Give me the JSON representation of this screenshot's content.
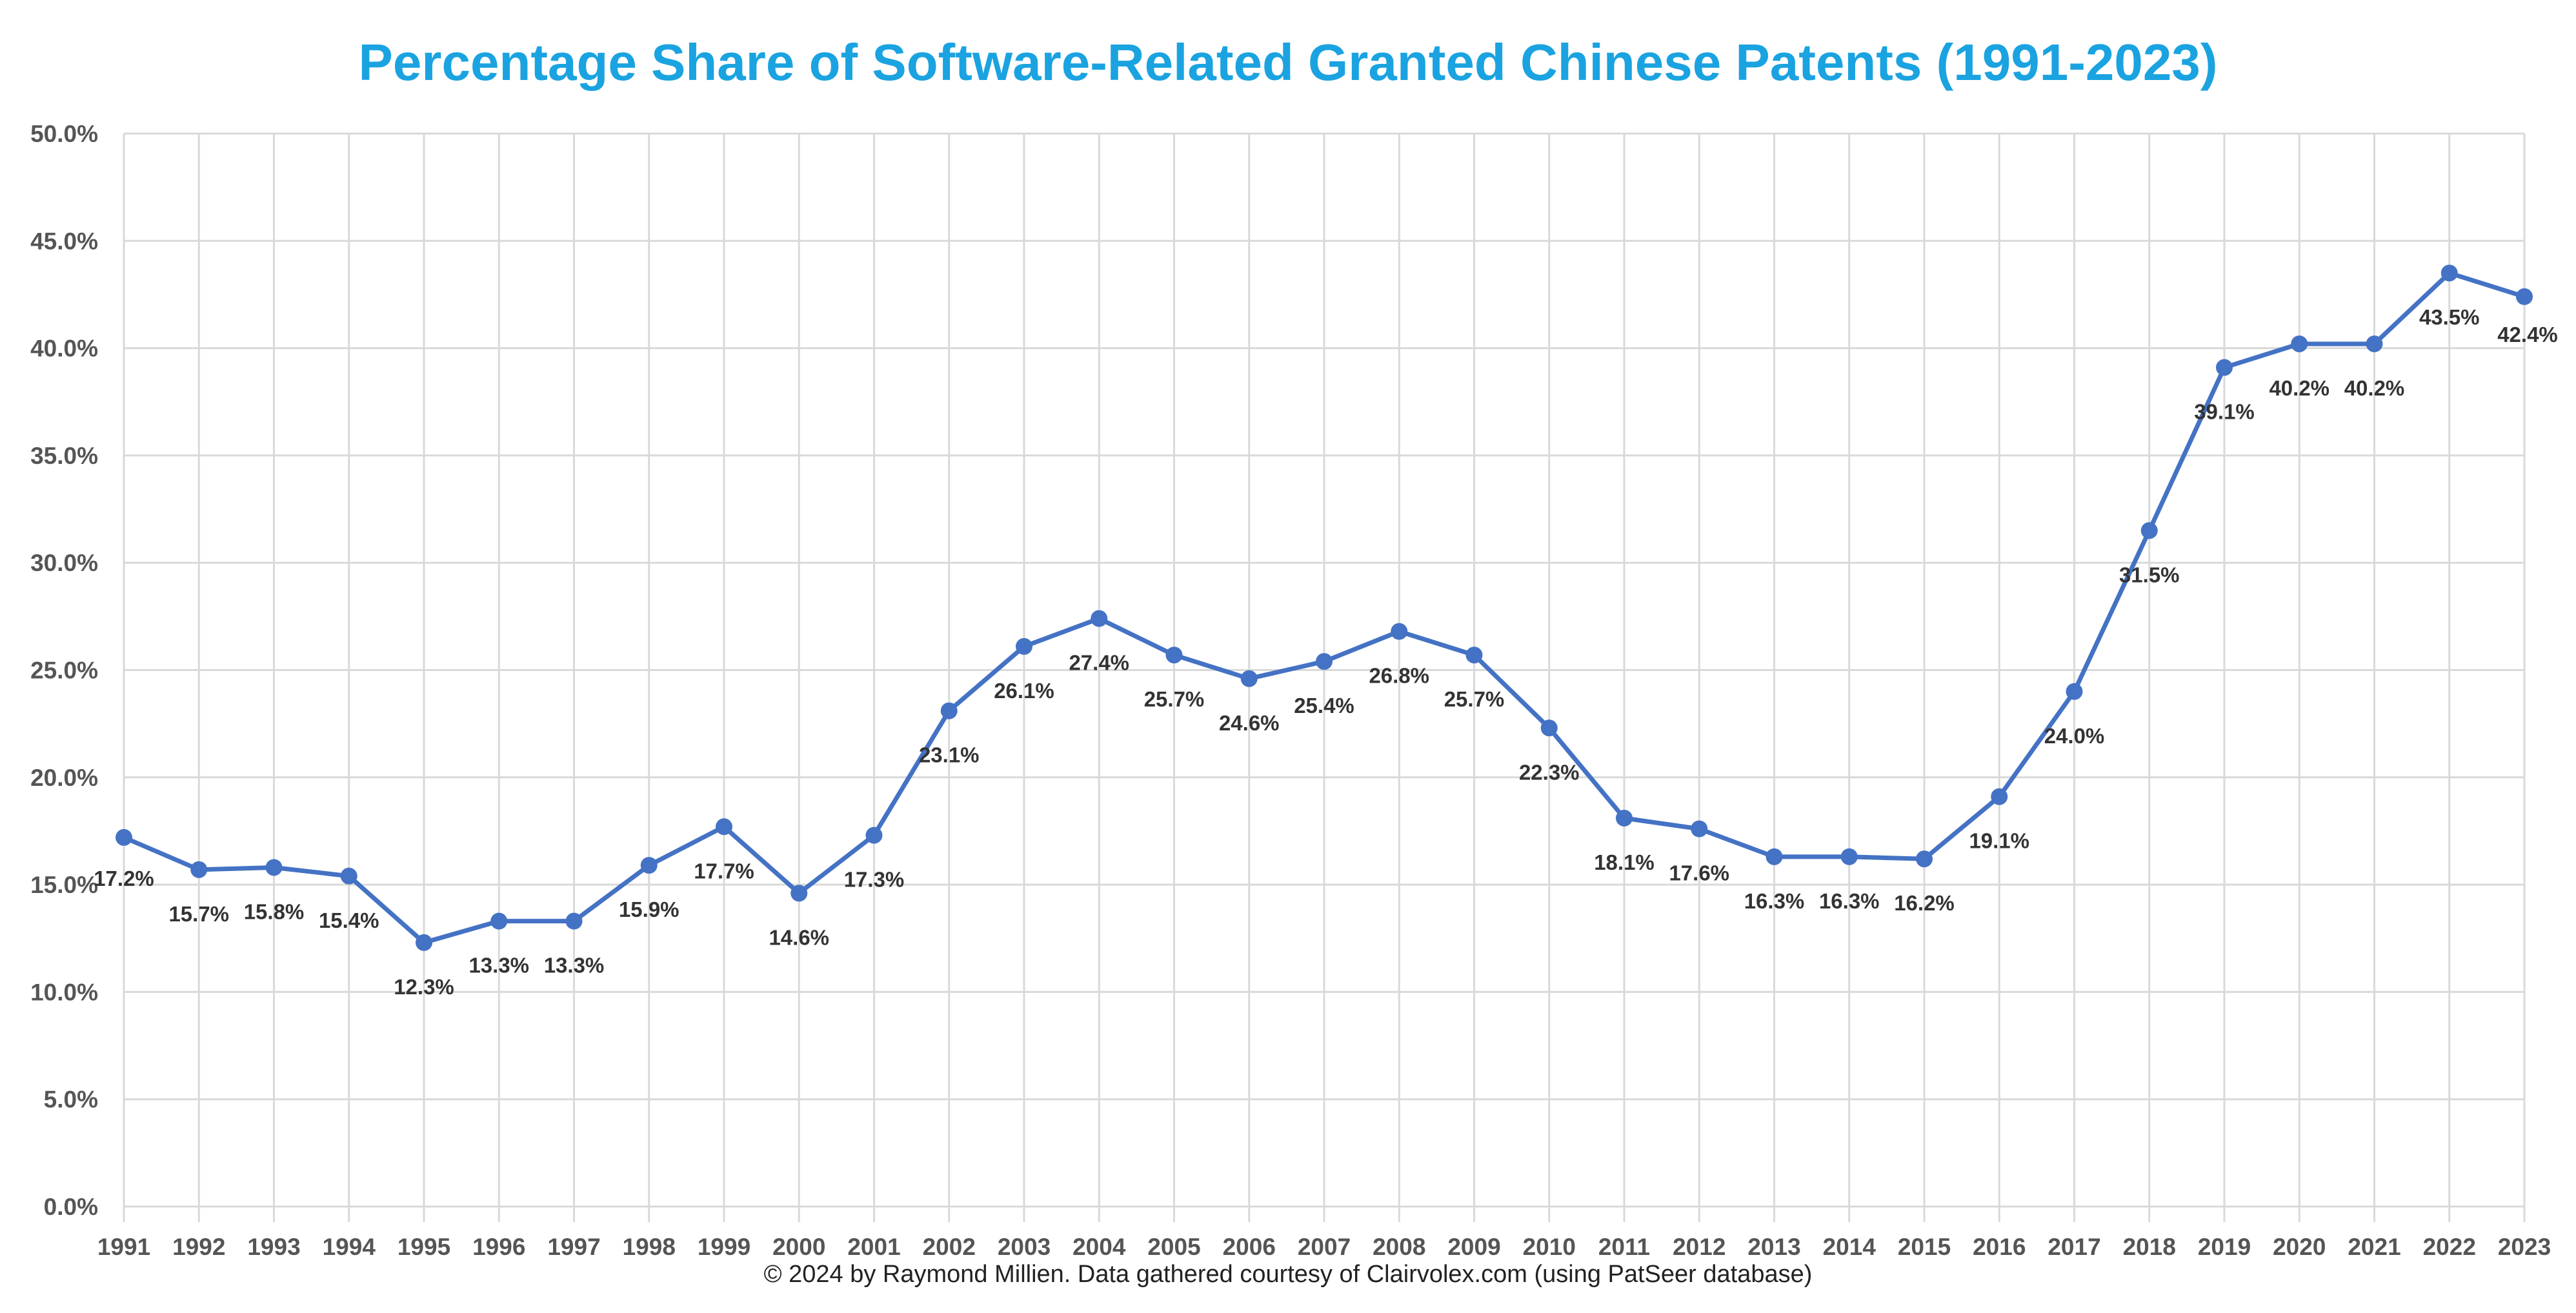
{
  "chart_data": {
    "type": "line",
    "title": "Percentage Share of Software-Related Granted Chinese Patents (1991-2023)",
    "xlabel": "",
    "ylabel": "",
    "ylim": [
      0,
      50
    ],
    "y_tick_labels": [
      "0.0%",
      "5.0%",
      "10.0%",
      "15.0%",
      "20.0%",
      "25.0%",
      "30.0%",
      "35.0%",
      "40.0%",
      "45.0%",
      "50.0%"
    ],
    "grid": true,
    "legend": "none",
    "categories": [
      "1991",
      "1992",
      "1993",
      "1994",
      "1995",
      "1996",
      "1997",
      "1998",
      "1999",
      "2000",
      "2001",
      "2002",
      "2003",
      "2004",
      "2005",
      "2006",
      "2007",
      "2008",
      "2009",
      "2010",
      "2011",
      "2012",
      "2013",
      "2014",
      "2015",
      "2016",
      "2017",
      "2018",
      "2019",
      "2020",
      "2021",
      "2022",
      "2023"
    ],
    "series": [
      {
        "values": [
          17.2,
          15.7,
          15.8,
          15.4,
          12.3,
          13.3,
          13.3,
          15.9,
          17.7,
          14.6,
          17.3,
          23.1,
          26.1,
          27.4,
          25.7,
          24.6,
          25.4,
          26.8,
          25.7,
          22.3,
          18.1,
          17.6,
          16.3,
          16.3,
          16.2,
          19.1,
          24.0,
          31.5,
          39.1,
          40.2,
          40.2,
          43.5,
          42.4
        ],
        "labels": [
          "17.2%",
          "15.7%",
          "15.8%",
          "15.4%",
          "12.3%",
          "13.3%",
          "13.3%",
          "15.9%",
          "17.7%",
          "14.6%",
          "17.3%",
          "23.1%",
          "26.1%",
          "27.4%",
          "25.7%",
          "24.6%",
          "25.4%",
          "26.8%",
          "25.7%",
          "22.3%",
          "18.1%",
          "17.6%",
          "16.3%",
          "16.3%",
          "16.2%",
          "19.1%",
          "24.0%",
          "31.5%",
          "39.1%",
          "40.2%",
          "40.2%",
          "43.5%",
          "42.4%"
        ]
      }
    ]
  },
  "footer": {
    "credit": "© 2024 by Raymond Millien. Data gathered courtesy of Clairvolex.com (using PatSeer database)"
  },
  "colors": {
    "title": "#1AA3E0",
    "line": "#4472C4",
    "marker": "#4472C4",
    "grid": "#D9D9D9"
  }
}
